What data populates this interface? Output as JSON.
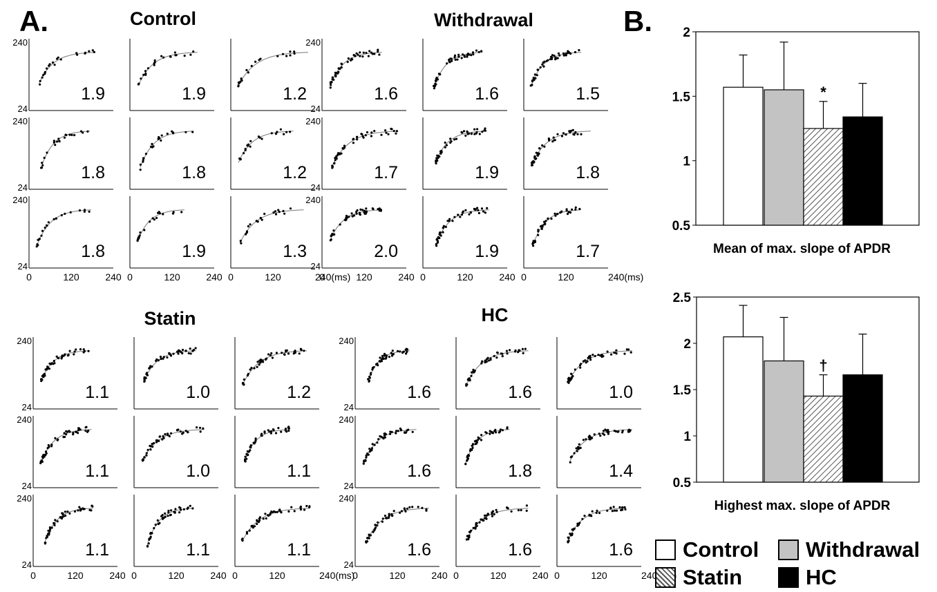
{
  "panel_labels": {
    "a": "A.",
    "b": "B."
  },
  "apdr_ticks": {
    "ymax": "240",
    "ymin": "24",
    "x": [
      "0",
      "120",
      "240"
    ],
    "x_last_ms": "240(ms)"
  },
  "colors": {
    "control": "#ffffff",
    "withdrawal": "#c3c3c3",
    "statin": "hatched",
    "hc": "#000000"
  },
  "chart_data": [
    {
      "type": "scatter",
      "title": "Control",
      "ylim": [
        24,
        240
      ],
      "xlim": [
        0,
        240
      ],
      "panel_values": [
        "1.9",
        "1.9",
        "1.2",
        "1.8",
        "1.8",
        "1.2",
        "1.8",
        "1.9",
        "1.3"
      ]
    },
    {
      "type": "scatter",
      "title": "Withdrawal",
      "ylim": [
        24,
        240
      ],
      "xlim": [
        0,
        240
      ],
      "panel_values": [
        "1.6",
        "1.6",
        "1.5",
        "1.7",
        "1.9",
        "1.8",
        "2.0",
        "1.9",
        "1.7"
      ]
    },
    {
      "type": "scatter",
      "title": "Statin",
      "ylim": [
        24,
        240
      ],
      "xlim": [
        0,
        240
      ],
      "panel_values": [
        "1.1",
        "1.0",
        "1.2",
        "1.1",
        "1.0",
        "1.1",
        "1.1",
        "1.1",
        "1.1"
      ]
    },
    {
      "type": "scatter",
      "title": "HC",
      "ylim": [
        24,
        240
      ],
      "xlim": [
        0,
        240
      ],
      "panel_values": [
        "1.6",
        "1.6",
        "1.0",
        "1.6",
        "1.8",
        "1.4",
        "1.6",
        "1.6",
        "1.6"
      ]
    },
    {
      "type": "bar",
      "xlabel": "Mean of max. slope of APDR",
      "categories": [
        "Control",
        "Withdrawal",
        "Statin",
        "HC"
      ],
      "values": [
        1.57,
        1.55,
        1.25,
        1.34
      ],
      "errors": [
        0.25,
        0.37,
        0.21,
        0.26
      ],
      "ylim": [
        0.5,
        2
      ],
      "yticks": [
        "0.5",
        "1",
        "1.5",
        "2"
      ],
      "annotation": "*"
    },
    {
      "type": "bar",
      "xlabel": "Highest max. slope of APDR",
      "categories": [
        "Control",
        "Withdrawal",
        "Statin",
        "HC"
      ],
      "values": [
        2.07,
        1.81,
        1.43,
        1.66
      ],
      "errors": [
        0.34,
        0.47,
        0.23,
        0.44
      ],
      "ylim": [
        0.5,
        2.5
      ],
      "yticks": [
        "0.5",
        "1",
        "1.5",
        "2",
        "2.5"
      ],
      "annotation": "†"
    }
  ],
  "legend": [
    {
      "label": "Control",
      "color": "#ffffff"
    },
    {
      "label": "Withdrawal",
      "color": "#c3c3c3"
    },
    {
      "label": "Statin",
      "color": "hatched"
    },
    {
      "label": "HC",
      "color": "#000000"
    }
  ]
}
